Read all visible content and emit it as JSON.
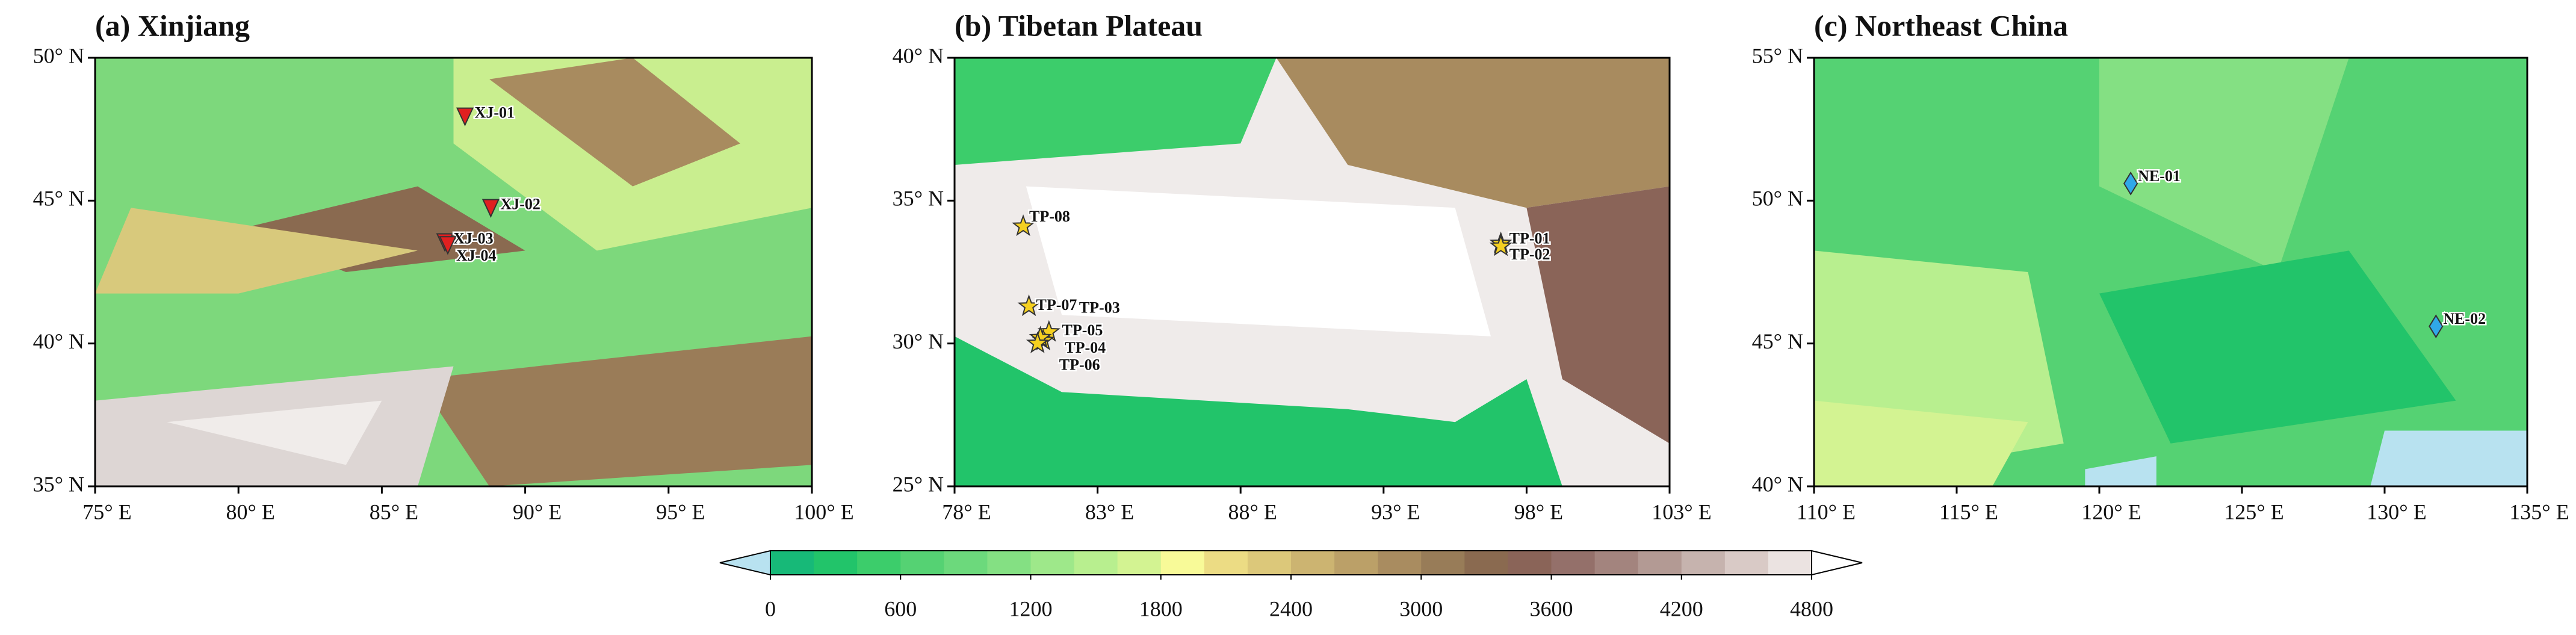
{
  "panels": [
    {
      "title": "(a) Xinjiang",
      "xlim": [
        75,
        100
      ],
      "ylim": [
        35,
        50
      ],
      "xticks": [
        {
          "value": 75,
          "label": "75° E"
        },
        {
          "value": 80,
          "label": "80° E"
        },
        {
          "value": 85,
          "label": "85° E"
        },
        {
          "value": 90,
          "label": "90° E"
        },
        {
          "value": 95,
          "label": "95° E"
        },
        {
          "value": 100,
          "label": "100° E"
        }
      ],
      "yticks": [
        {
          "value": 35,
          "label": "35° N"
        },
        {
          "value": 40,
          "label": "40° N"
        },
        {
          "value": 45,
          "label": "45° N"
        },
        {
          "value": 50,
          "label": "50° N"
        }
      ],
      "marker": "triangle",
      "marker_color": "#e02020",
      "stations": [
        {
          "label": "XJ-01",
          "lon": 87.9,
          "lat": 47.9
        },
        {
          "label": "XJ-02",
          "lon": 88.8,
          "lat": 44.7
        },
        {
          "label": "XJ-03",
          "lon": 87.2,
          "lat": 43.5
        },
        {
          "label": "XJ-04",
          "lon": 87.3,
          "lat": 43.4
        }
      ]
    },
    {
      "title": "(b) Tibetan Plateau",
      "xlim": [
        78,
        103
      ],
      "ylim": [
        25,
        40
      ],
      "xticks": [
        {
          "value": 78,
          "label": "78° E"
        },
        {
          "value": 83,
          "label": "83° E"
        },
        {
          "value": 88,
          "label": "88° E"
        },
        {
          "value": 93,
          "label": "93° E"
        },
        {
          "value": 98,
          "label": "98° E"
        },
        {
          "value": 103,
          "label": "103° E"
        }
      ],
      "yticks": [
        {
          "value": 25,
          "label": "25° N"
        },
        {
          "value": 30,
          "label": "30° N"
        },
        {
          "value": 35,
          "label": "35° N"
        },
        {
          "value": 40,
          "label": "40° N"
        }
      ],
      "marker": "star",
      "marker_color": "#f5d020",
      "stations": [
        {
          "label": "TP-01",
          "lon": 97.1,
          "lat": 33.5
        },
        {
          "label": "TP-02",
          "lon": 97.1,
          "lat": 33.4
        },
        {
          "label": "TP-03",
          "lon": 81.3,
          "lat": 30.4
        },
        {
          "label": "TP-04",
          "lon": 81.1,
          "lat": 30.1
        },
        {
          "label": "TP-05",
          "lon": 81.0,
          "lat": 30.2
        },
        {
          "label": "TP-06",
          "lon": 80.9,
          "lat": 30.0
        },
        {
          "label": "TP-07",
          "lon": 80.6,
          "lat": 31.3
        },
        {
          "label": "TP-08",
          "lon": 80.4,
          "lat": 34.1
        }
      ]
    },
    {
      "title": "(c) Northeast China",
      "xlim": [
        110,
        135
      ],
      "ylim": [
        40,
        55
      ],
      "xticks": [
        {
          "value": 110,
          "label": "110° E"
        },
        {
          "value": 115,
          "label": "115° E"
        },
        {
          "value": 120,
          "label": "120° E"
        },
        {
          "value": 125,
          "label": "125° E"
        },
        {
          "value": 130,
          "label": "130° E"
        },
        {
          "value": 135,
          "label": "135° E"
        }
      ],
      "yticks": [
        {
          "value": 40,
          "label": "40° N"
        },
        {
          "value": 45,
          "label": "45° N"
        },
        {
          "value": 50,
          "label": "50° N"
        },
        {
          "value": 55,
          "label": "55° N"
        }
      ],
      "marker": "diamond",
      "marker_color": "#30a8e8",
      "stations": [
        {
          "label": "NE-01",
          "lon": 121.1,
          "lat": 50.6
        },
        {
          "label": "NE-02",
          "lon": 131.8,
          "lat": 45.6
        }
      ]
    }
  ],
  "colorbar": {
    "lim": [
      0,
      4800
    ],
    "ticks": [
      0,
      600,
      1200,
      1800,
      2400,
      3000,
      3600,
      4200,
      4800
    ],
    "under_color": "#b8e2f0",
    "over_color": "#ffffff",
    "colors": [
      "#17b978",
      "#22c46a",
      "#3ccd6b",
      "#55d273",
      "#6cd97c",
      "#84e083",
      "#9ee88a",
      "#b8ef8f",
      "#d3f392",
      "#f8fa98",
      "#ecdc84",
      "#dcc87a",
      "#ccb471",
      "#bba068",
      "#a98c60",
      "#987c58",
      "#8a6a50",
      "#8a6458",
      "#94706a",
      "#a3847e",
      "#b39a94",
      "#c6b3ae",
      "#d9cac6",
      "#ebe3e1"
    ]
  }
}
